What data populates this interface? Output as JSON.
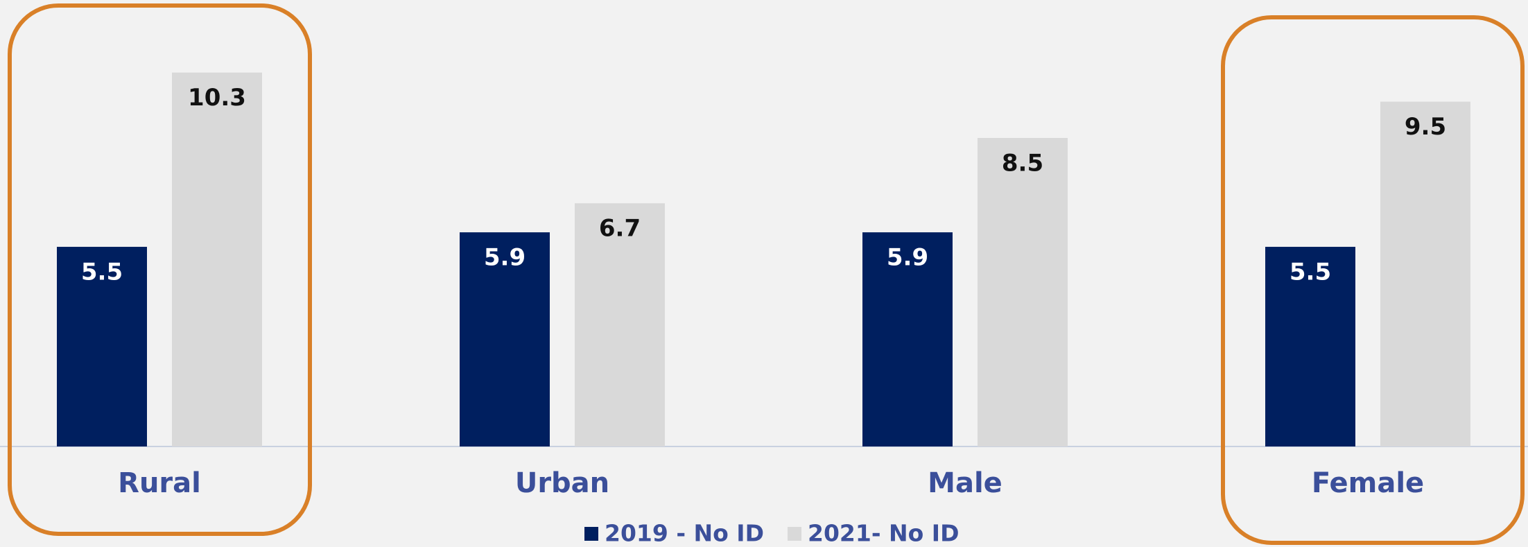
{
  "chart_data": {
    "type": "bar",
    "categories": [
      "Rural",
      "Urban",
      "Male",
      "Female"
    ],
    "series": [
      {
        "name": "2019 - No ID",
        "color": "#001f5f",
        "values": [
          5.5,
          5.9,
          5.9,
          5.5
        ]
      },
      {
        "name": "2021- No ID",
        "color": "#d9d9d9",
        "values": [
          10.3,
          6.7,
          8.5,
          9.5
        ]
      }
    ],
    "ylim": [
      0,
      12.3
    ],
    "legend": "bottom"
  }
}
